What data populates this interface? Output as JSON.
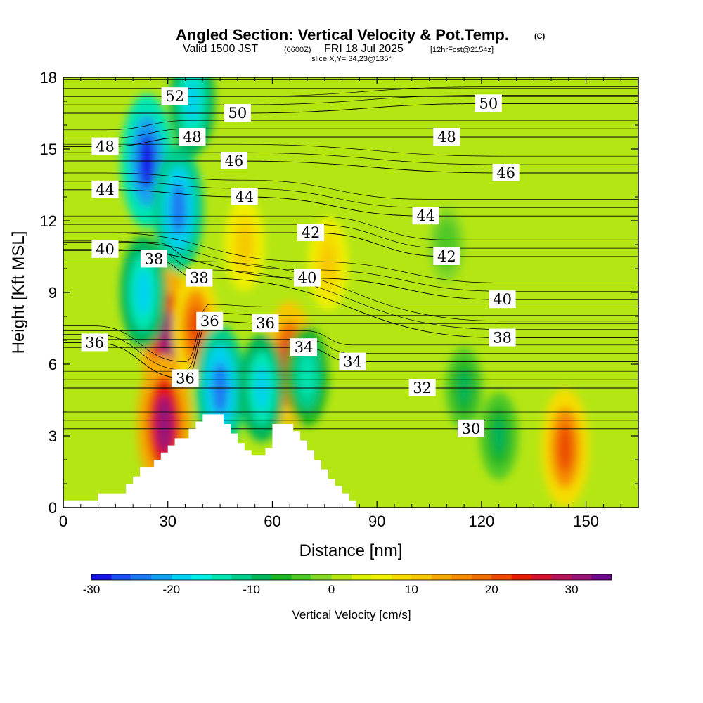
{
  "header": {
    "title": "Angled Section: Vertical Velocity & Pot.Temp.",
    "title_tag": "(C)",
    "subtitle_a": "Valid 1500 JST",
    "subtitle_b": "(0600Z)",
    "subtitle_c": "FRI 18 Jul 2025",
    "subtitle_d": "[12hrFcst@2154z]",
    "slice": "slice X,Y= 34,23@135°"
  },
  "chart_data": {
    "type": "heatmap",
    "title": "Angled Section: Vertical Velocity & Pot.Temp.",
    "xlabel": "Distance [nm]",
    "ylabel": "Height [Kft MSL]",
    "xlim": [
      0,
      165
    ],
    "ylim": [
      0,
      18
    ],
    "x_ticks": [
      "0",
      "30",
      "60",
      "90",
      "120",
      "150"
    ],
    "x_tick_values": [
      0,
      30,
      60,
      90,
      120,
      150
    ],
    "y_ticks": [
      "0",
      "3",
      "6",
      "9",
      "12",
      "15",
      "18"
    ],
    "y_tick_values": [
      0,
      3,
      6,
      9,
      12,
      15,
      18
    ],
    "colorbar": {
      "label": "Vertical Velocity [cm/s]",
      "min": -30,
      "max": 35,
      "step": 2.5,
      "ticks": [
        "-30",
        "-20",
        "-10",
        "0",
        "10",
        "20",
        "30"
      ],
      "tick_values": [
        -30,
        -20,
        -10,
        0,
        10,
        20,
        30
      ],
      "colors": [
        "#1414e6",
        "#1e50f0",
        "#1e78f0",
        "#14a0f0",
        "#00d2f0",
        "#00f0e6",
        "#00e6b4",
        "#00cc8c",
        "#00b45a",
        "#1eb428",
        "#50c828",
        "#82d728",
        "#b4e614",
        "#dcf000",
        "#f0f000",
        "#f5dc00",
        "#f5c800",
        "#f5aa00",
        "#f58c00",
        "#f06e00",
        "#eb4b00",
        "#e61e00",
        "#d2142d",
        "#b4145a",
        "#961478",
        "#6e0a8c"
      ]
    },
    "vertical_velocity_features": [
      {
        "x": 30,
        "y": 7.0,
        "value": 32
      },
      {
        "x": 29,
        "y": 3.5,
        "value": 30
      },
      {
        "x": 38,
        "y": 7.5,
        "value": 20
      },
      {
        "x": 65,
        "y": 6.0,
        "value": 25
      },
      {
        "x": 144,
        "y": 2.5,
        "value": 22
      },
      {
        "x": 52,
        "y": 11.0,
        "value": 12
      },
      {
        "x": 76,
        "y": 10.2,
        "value": 12
      },
      {
        "x": 24,
        "y": 14.5,
        "value": -28
      },
      {
        "x": 33,
        "y": 12.5,
        "value": -25
      },
      {
        "x": 45,
        "y": 5.0,
        "value": -25
      },
      {
        "x": 23,
        "y": 9.0,
        "value": -20
      },
      {
        "x": 57,
        "y": 5.0,
        "value": -18
      },
      {
        "x": 37,
        "y": 17.0,
        "value": -18
      },
      {
        "x": 70,
        "y": 5.5,
        "value": -15
      },
      {
        "x": 125,
        "y": 3.0,
        "value": -10
      },
      {
        "x": 115,
        "y": 5.0,
        "value": -8
      },
      {
        "x": 110,
        "y": 11.0,
        "value": -5
      }
    ],
    "potential_temperature_labels": [
      {
        "text": "52",
        "x": 32,
        "y": 17.2
      },
      {
        "text": "50",
        "x": 50,
        "y": 16.5
      },
      {
        "text": "50",
        "x": 122,
        "y": 16.9
      },
      {
        "text": "48",
        "x": 12,
        "y": 15.1
      },
      {
        "text": "48",
        "x": 37,
        "y": 15.5
      },
      {
        "text": "48",
        "x": 110,
        "y": 15.5
      },
      {
        "text": "46",
        "x": 49,
        "y": 14.5
      },
      {
        "text": "46",
        "x": 127,
        "y": 14.0
      },
      {
        "text": "44",
        "x": 12,
        "y": 13.3
      },
      {
        "text": "44",
        "x": 52,
        "y": 13.0
      },
      {
        "text": "44",
        "x": 104,
        "y": 12.2
      },
      {
        "text": "42",
        "x": 71,
        "y": 11.5
      },
      {
        "text": "42",
        "x": 110,
        "y": 10.5
      },
      {
        "text": "40",
        "x": 12,
        "y": 10.8
      },
      {
        "text": "40",
        "x": 70,
        "y": 9.6
      },
      {
        "text": "40",
        "x": 126,
        "y": 8.7
      },
      {
        "text": "38",
        "x": 26,
        "y": 10.4
      },
      {
        "text": "38",
        "x": 39,
        "y": 9.6
      },
      {
        "text": "38",
        "x": 126,
        "y": 7.1
      },
      {
        "text": "36",
        "x": 9,
        "y": 6.9
      },
      {
        "text": "36",
        "x": 42,
        "y": 7.8
      },
      {
        "text": "36",
        "x": 58,
        "y": 7.7
      },
      {
        "text": "36",
        "x": 35,
        "y": 5.4
      },
      {
        "text": "34",
        "x": 69,
        "y": 6.7
      },
      {
        "text": "34",
        "x": 83,
        "y": 6.1
      },
      {
        "text": "32",
        "x": 103,
        "y": 5.0
      },
      {
        "text": "30",
        "x": 117,
        "y": 3.3
      }
    ],
    "terrain": [
      [
        0,
        0.3
      ],
      [
        10,
        0.3
      ],
      [
        10,
        0.6
      ],
      [
        18,
        0.6
      ],
      [
        18,
        1.0
      ],
      [
        20,
        1.0
      ],
      [
        20,
        1.3
      ],
      [
        22,
        1.3
      ],
      [
        22,
        1.7
      ],
      [
        26,
        1.7
      ],
      [
        26,
        2.0
      ],
      [
        28,
        2.0
      ],
      [
        28,
        2.3
      ],
      [
        30,
        2.3
      ],
      [
        30,
        2.6
      ],
      [
        32,
        2.6
      ],
      [
        32,
        2.9
      ],
      [
        36,
        2.9
      ],
      [
        36,
        3.3
      ],
      [
        38,
        3.3
      ],
      [
        38,
        3.6
      ],
      [
        40,
        3.6
      ],
      [
        40,
        3.9
      ],
      [
        46,
        3.9
      ],
      [
        46,
        3.5
      ],
      [
        48,
        3.5
      ],
      [
        48,
        3.1
      ],
      [
        50,
        3.1
      ],
      [
        50,
        2.7
      ],
      [
        52,
        2.7
      ],
      [
        52,
        2.4
      ],
      [
        54,
        2.4
      ],
      [
        54,
        2.2
      ],
      [
        58,
        2.2
      ],
      [
        58,
        2.5
      ],
      [
        60,
        2.5
      ],
      [
        60,
        3.5
      ],
      [
        66,
        3.5
      ],
      [
        66,
        3.2
      ],
      [
        68,
        3.2
      ],
      [
        68,
        2.8
      ],
      [
        70,
        2.8
      ],
      [
        70,
        2.4
      ],
      [
        72,
        2.4
      ],
      [
        72,
        2.0
      ],
      [
        74,
        2.0
      ],
      [
        74,
        1.6
      ],
      [
        76,
        1.6
      ],
      [
        76,
        1.2
      ],
      [
        78,
        1.2
      ],
      [
        78,
        0.9
      ],
      [
        80,
        0.9
      ],
      [
        80,
        0.6
      ],
      [
        82,
        0.6
      ],
      [
        82,
        0.3
      ],
      [
        84,
        0.3
      ],
      [
        84,
        0
      ],
      [
        0,
        0
      ]
    ]
  }
}
